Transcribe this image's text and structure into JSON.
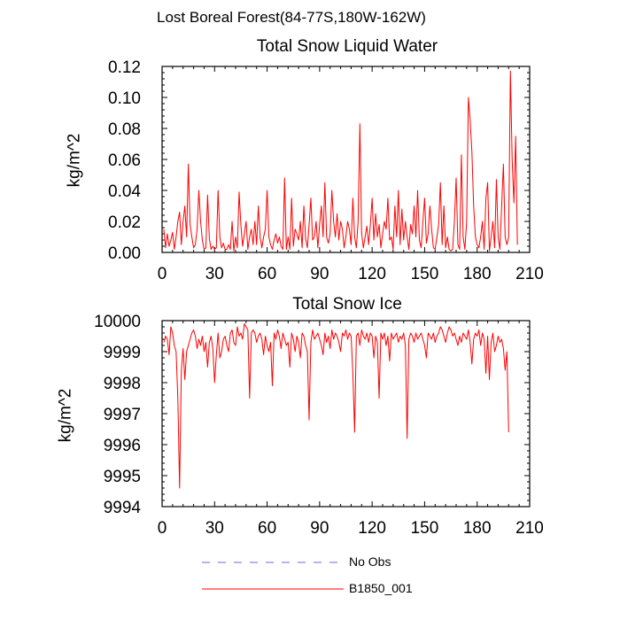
{
  "figure_title": "Lost Boreal Forest(84-77S,180W-162W)",
  "legend": {
    "items": [
      {
        "label": "No Obs",
        "color": "#6a6ad8",
        "style": "dashed"
      },
      {
        "label": "B1850_001",
        "color": "#ff0000",
        "style": "solid"
      }
    ]
  },
  "chart_data": [
    {
      "type": "line",
      "title": "Total Snow Liquid Water",
      "xlabel": "",
      "ylabel": "kg/m^2",
      "xlim": [
        0,
        210
      ],
      "ylim": [
        0,
        0.12
      ],
      "xticks": [
        0,
        30,
        60,
        90,
        120,
        150,
        180,
        210
      ],
      "xtick_labels": [
        "0",
        "30",
        "60",
        "90",
        "120",
        "150",
        "180",
        "210"
      ],
      "yticks": [
        0,
        0.02,
        0.04,
        0.06,
        0.08,
        0.1,
        0.12
      ],
      "ytick_labels": [
        "0.00",
        "0.02",
        "0.04",
        "0.06",
        "0.08",
        "0.10",
        "0.12"
      ],
      "series": [
        {
          "name": "B1850_001",
          "color": "#ff0000",
          "x_start": 1,
          "x_step": 1,
          "values": [
            0.015,
            0.003,
            0.012,
            0.004,
            0.008,
            0.013,
            0.002,
            0.01,
            0.02,
            0.026,
            0.005,
            0.02,
            0.03,
            0.01,
            0.057,
            0.018,
            0.01,
            0.003,
            0.005,
            0.015,
            0.04,
            0.02,
            0.008,
            0.002,
            0.003,
            0.037,
            0.009,
            0.002,
            0.004,
            0.002,
            0.003,
            0.04,
            0.01,
            0.003,
            0.006,
            0.002,
            0.002,
            0.005,
            0.002,
            0.02,
            0.001,
            0.01,
            0.003,
            0.039,
            0.018,
            0.004,
            0.012,
            0.02,
            0.002,
            0.01,
            0.015,
            0.005,
            0.02,
            0.005,
            0.03,
            0.01,
            0.003,
            0.01,
            0.015,
            0.04,
            0.01,
            0.005,
            0.002,
            0.008,
            0.012,
            0.006,
            0.01,
            0.004,
            0.002,
            0.048,
            0.002,
            0.01,
            0.002,
            0.035,
            0.004,
            0.015,
            0.012,
            0.008,
            0.02,
            0.003,
            0.03,
            0.009,
            0.003,
            0.018,
            0.035,
            0.008,
            0.01,
            0.02,
            0.003,
            0.018,
            0.03,
            0.01,
            0.045,
            0.01,
            0.006,
            0.012,
            0.04,
            0.02,
            0.01,
            0.025,
            0.008,
            0.02,
            0.015,
            0.003,
            0.01,
            0.02,
            0.015,
            0.005,
            0.035,
            0.01,
            0.003,
            0.02,
            0.083,
            0.012,
            0.003,
            0.01,
            0.017,
            0.005,
            0.018,
            0.035,
            0.008,
            0.025,
            0.01,
            0.018,
            0.003,
            0.012,
            0.02,
            0.015,
            0.035,
            0.008,
            0.01,
            0.002,
            0.03,
            0.01,
            0.04,
            0.005,
            0.028,
            0.008,
            0.02,
            0.01,
            0.002,
            0.018,
            0.012,
            0.03,
            0.01,
            0.04,
            0.008,
            0.003,
            0.02,
            0.035,
            0.006,
            0.012,
            0.03,
            0.015,
            0.003,
            0.002,
            0.01,
            0.018,
            0.045,
            0.005,
            0.03,
            0.003,
            0.01,
            0.002,
            0.001,
            0.002,
            0.02,
            0.048,
            0.005,
            0.002,
            0.063,
            0.01,
            0.002,
            0.02,
            0.1,
            0.085,
            0.065,
            0.03,
            0.01,
            0.005,
            0.003,
            0.01,
            0.02,
            0.002,
            0.035,
            0.045,
            0.001,
            0.01,
            0.02,
            0.003,
            0.047,
            0.01,
            0.002,
            0.03,
            0.057,
            0.01,
            0.005,
            0.01,
            0.117,
            0.06,
            0.032,
            0.075,
            0.005
          ]
        }
      ]
    },
    {
      "type": "line",
      "title": "Total Snow Ice",
      "xlabel": "",
      "ylabel": "kg/m^2",
      "xlim": [
        0,
        210
      ],
      "ylim": [
        9994,
        10000
      ],
      "xticks": [
        0,
        30,
        60,
        90,
        120,
        150,
        180,
        210
      ],
      "xtick_labels": [
        "0",
        "30",
        "60",
        "90",
        "120",
        "150",
        "180",
        "210"
      ],
      "yticks": [
        9994,
        9995,
        9996,
        9997,
        9998,
        9999,
        10000
      ],
      "ytick_labels": [
        "9994",
        "9995",
        "9996",
        "9997",
        "9998",
        "9999",
        "10000"
      ],
      "series": [
        {
          "name": "B1850_001",
          "color": "#ff0000",
          "x_start": 1,
          "x_step": 1,
          "values": [
            9999.3,
            9999.5,
            9999.4,
            9998.9,
            9999.8,
            9999.6,
            9999.2,
            9999.0,
            9997.5,
            9994.6,
            9998.4,
            9999.1,
            9998.1,
            9999.0,
            9999.2,
            9999.4,
            9999.6,
            9999.7,
            9999.5,
            9999.1,
            9999.4,
            9999.2,
            9999.5,
            9999.0,
            9999.3,
            9998.5,
            9999.3,
            9999.5,
            9999.1,
            9998.0,
            9998.9,
            9999.6,
            9998.8,
            9999.0,
            9999.4,
            9999.5,
            9999.2,
            9999.0,
            9999.6,
            9999.7,
            9999.3,
            9999.2,
            9999.8,
            9999.5,
            9999.6,
            9999.4,
            9999.9,
            9999.8,
            9999.7,
            9997.5,
            9999.6,
            9999.7,
            9999.6,
            9999.3,
            9999.5,
            9999.6,
            9999.4,
            9998.9,
            9999.5,
            9999.2,
            9999.0,
            9999.3,
            9997.9,
            9999.6,
            9999.4,
            9999.7,
            9999.5,
            9999.1,
            9999.6,
            9999.4,
            9999.2,
            9999.3,
            9998.5,
            9999.6,
            9999.4,
            9999.0,
            9999.5,
            9999.3,
            9998.8,
            9999.6,
            9999.5,
            9999.2,
            9999.0,
            9996.8,
            9999.3,
            9999.7,
            9999.4,
            9999.5,
            9999.6,
            9999.4,
            9999.2,
            9998.9,
            9999.6,
            9999.3,
            9999.5,
            9999.1,
            9999.7,
            9999.4,
            9999.6,
            9999.5,
            9999.3,
            9999.0,
            9999.6,
            9999.5,
            9999.7,
            9999.4,
            9999.6,
            9999.5,
            9998.3,
            9996.4,
            9999.5,
            9999.6,
            9999.2,
            9999.7,
            9999.5,
            9999.4,
            9999.6,
            9999.3,
            9999.6,
            9999.5,
            9998.8,
            9999.5,
            9999.3,
            9997.5,
            9999.6,
            9999.4,
            9999.6,
            9999.2,
            9999.5,
            9998.7,
            9999.6,
            9999.4,
            9999.5,
            9999.6,
            9999.3,
            9999.5,
            9999.4,
            9999.6,
            9999.2,
            9996.2,
            9999.4,
            9999.6,
            9999.5,
            9999.3,
            9999.6,
            9999.4,
            9999.5,
            9999.6,
            9999.4,
            9999.2,
            9998.8,
            9999.6,
            9999.5,
            9999.4,
            9999.6,
            9999.3,
            9999.5,
            9999.6,
            9999.8,
            9999.7,
            9999.5,
            9999.3,
            9999.6,
            9999.8,
            9999.7,
            9999.5,
            9999.6,
            9999.4,
            9999.2,
            9999.5,
            9999.3,
            9999.6,
            9999.5,
            9999.4,
            9999.7,
            9999.3,
            9998.6,
            9999.4,
            9999.6,
            9999.5,
            9999.7,
            9999.2,
            9999.6,
            9999.4,
            9998.3,
            9999.5,
            9998.1,
            9999.3,
            9999.6,
            9999.0,
            9999.2,
            9999.5,
            9999.3,
            9999.4,
            9999.1,
            9998.4,
            9999.0,
            9996.4
          ]
        }
      ]
    }
  ]
}
